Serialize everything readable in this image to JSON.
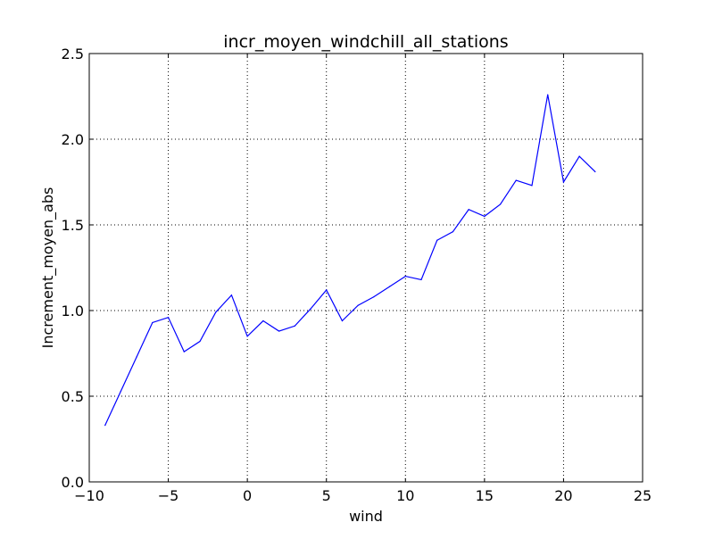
{
  "chart_data": {
    "type": "line",
    "title": "incr_moyen_windchill_all_stations",
    "xlabel": "wind",
    "ylabel": "Increment_moyen_abs",
    "xlim": [
      -10,
      25
    ],
    "ylim": [
      0.0,
      2.5
    ],
    "xticks": [
      -10,
      -5,
      0,
      5,
      10,
      15,
      20,
      25
    ],
    "xtick_labels": [
      "−10",
      "−5",
      "0",
      "5",
      "10",
      "15",
      "20",
      "25"
    ],
    "yticks": [
      0.0,
      0.5,
      1.0,
      1.5,
      2.0,
      2.5
    ],
    "ytick_labels": [
      "0.0",
      "0.5",
      "1.0",
      "1.5",
      "2.0",
      "2.5"
    ],
    "grid": true,
    "series": [
      {
        "color": "#0000ff",
        "x": [
          -9,
          -8,
          -7,
          -6,
          -5,
          -4,
          -3,
          -2,
          -1,
          0,
          1,
          2,
          3,
          4,
          5,
          6,
          7,
          8,
          9,
          10,
          11,
          12,
          13,
          14,
          15,
          16,
          17,
          18,
          19,
          20,
          21,
          22
        ],
        "y": [
          0.33,
          0.53,
          0.73,
          0.93,
          0.96,
          0.76,
          0.82,
          0.99,
          1.09,
          0.85,
          0.94,
          0.88,
          0.91,
          1.01,
          1.12,
          0.94,
          1.03,
          1.08,
          1.14,
          1.2,
          1.18,
          1.41,
          1.46,
          1.59,
          1.55,
          1.62,
          1.76,
          1.73,
          2.26,
          1.75,
          1.9,
          1.81
        ]
      }
    ]
  }
}
